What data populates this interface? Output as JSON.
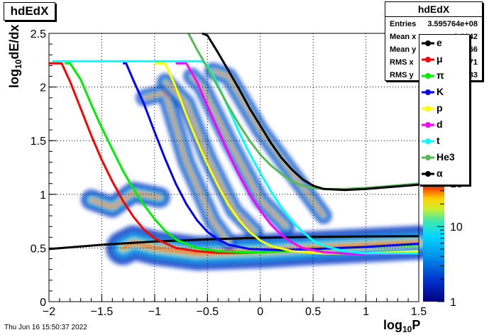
{
  "histogram_title": "hdEdX",
  "stats": {
    "title": "hdEdX",
    "rows": [
      {
        "key": "Entries",
        "value": "3.595764e+08"
      },
      {
        "key": "Mean x",
        "value": "0.2942"
      },
      {
        "key": "Mean y",
        "value": "0.6266"
      },
      {
        "key": "RMS x",
        "value": "0.4871"
      },
      {
        "key": "RMS y",
        "value": "0.2683"
      }
    ]
  },
  "timestamp": "Thu Jun 16 15:50:37 2022",
  "colorbar_ticks": [
    "1",
    "10",
    "10"
  ],
  "colorbar_exps": [
    "",
    "",
    "2"
  ],
  "colors": {
    "e": "#000000",
    "mu": "#ff0000",
    "pi": "#00ee00",
    "K": "#0000ff",
    "p": "#ffff00",
    "d": "#ff00ff",
    "t": "#00ffff",
    "He3": "#55bb55",
    "alpha": "#000000"
  },
  "chart_data": {
    "type": "heatmap",
    "title": "hdEdX",
    "xlabel": "log10P",
    "ylabel": "log10dE/dx",
    "xlim": [
      -2,
      1.5
    ],
    "ylim": [
      0,
      2.5
    ],
    "xticks": [
      "−2",
      "−1.5",
      "−1",
      "−0.5",
      "0",
      "0.5",
      "1",
      "1.5"
    ],
    "yticks": [
      "0",
      "0.5",
      "1",
      "1.5",
      "2",
      "2.5"
    ],
    "grid": true,
    "colorscale": "log",
    "zlim": [
      1,
      1000
    ],
    "legend_position": "top-right",
    "bands": [
      {
        "ridge": [
          [
            -1.3,
            0.5
          ],
          [
            -1.2,
            0.55
          ],
          [
            -1.0,
            0.5
          ],
          [
            -0.6,
            0.45
          ],
          [
            0,
            0.47
          ],
          [
            0.5,
            0.5
          ],
          [
            1.5,
            0.55
          ]
        ],
        "width": 0.05
      },
      {
        "ridge": [
          [
            -1.6,
            0.95
          ],
          [
            -1.4,
            0.88
          ],
          [
            -1.2,
            1.02
          ],
          [
            -0.95,
            0.97
          ]
        ],
        "width": 0.05
      },
      {
        "ridge": [
          [
            -1.1,
            1.9
          ],
          [
            -0.9,
            1.95
          ],
          [
            -0.7,
            1.3
          ],
          [
            -0.45,
            0.75
          ],
          [
            -0.3,
            0.55
          ]
        ],
        "width": 0.04
      },
      {
        "ridge": [
          [
            -0.9,
            2.05
          ],
          [
            -0.7,
            1.85
          ],
          [
            -0.5,
            1.35
          ],
          [
            -0.25,
            0.85
          ],
          [
            -0.05,
            0.65
          ]
        ],
        "width": 0.04
      },
      {
        "ridge": [
          [
            -0.65,
            2.1
          ],
          [
            -0.55,
            2.0
          ],
          [
            -0.3,
            1.5
          ],
          [
            0,
            0.95
          ],
          [
            0.25,
            0.7
          ]
        ],
        "width": 0.04
      },
      {
        "ridge": [
          [
            -0.45,
            2.15
          ],
          [
            -0.3,
            2.1
          ],
          [
            0,
            1.6
          ],
          [
            0.3,
            1.2
          ],
          [
            0.6,
            0.8
          ]
        ],
        "width": 0.04
      }
    ],
    "series": [
      {
        "name": "e",
        "x": [
          -2,
          -1.5,
          -1,
          -0.5,
          0,
          0.5,
          1,
          1.5
        ],
        "y": [
          0.49,
          0.53,
          0.56,
          0.58,
          0.595,
          0.603,
          0.608,
          0.61
        ]
      },
      {
        "name": "μ",
        "x": [
          -2.0,
          -1.88,
          -1.8,
          -1.7,
          -1.6,
          -1.5,
          -1.4,
          -1.3,
          -1.2,
          -1.1,
          -1.0,
          -0.8,
          -0.6,
          -0.4,
          -0.2,
          0,
          0.3,
          0.6
        ],
        "y": [
          2.22,
          2.22,
          2.05,
          1.8,
          1.55,
          1.32,
          1.12,
          0.94,
          0.79,
          0.67,
          0.59,
          0.5,
          0.47,
          0.455,
          0.455,
          0.46,
          0.475,
          0.49
        ]
      },
      {
        "name": "π",
        "x": [
          -1.85,
          -1.8,
          -1.7,
          -1.6,
          -1.5,
          -1.4,
          -1.3,
          -1.2,
          -1.1,
          -1.0,
          -0.9,
          -0.8,
          -0.6,
          -0.4,
          -0.2,
          0,
          0.3,
          0.6,
          1.0,
          1.5
        ],
        "y": [
          2.22,
          2.22,
          2.07,
          1.84,
          1.62,
          1.42,
          1.22,
          1.05,
          0.9,
          0.77,
          0.66,
          0.58,
          0.5,
          0.47,
          0.46,
          0.46,
          0.47,
          0.49,
          0.51,
          0.53
        ]
      },
      {
        "name": "K",
        "x": [
          -1.3,
          -1.27,
          -1.2,
          -1.1,
          -1.0,
          -0.9,
          -0.8,
          -0.7,
          -0.6,
          -0.5,
          -0.4,
          -0.3,
          -0.1,
          0.2,
          0.5,
          1.0,
          1.5
        ],
        "y": [
          2.22,
          2.22,
          2.06,
          1.84,
          1.58,
          1.33,
          1.1,
          0.91,
          0.76,
          0.65,
          0.58,
          0.53,
          0.49,
          0.48,
          0.49,
          0.51,
          0.54
        ]
      },
      {
        "name": "p",
        "x": [
          -1.0,
          -0.9,
          -0.8,
          -0.7,
          -0.6,
          -0.5,
          -0.4,
          -0.3,
          -0.2,
          -0.1,
          0,
          0.1,
          0.3,
          0.6,
          1.0,
          1.5
        ],
        "y": [
          2.22,
          2.22,
          2.0,
          1.74,
          1.5,
          1.28,
          1.08,
          0.9,
          0.76,
          0.65,
          0.57,
          0.52,
          0.47,
          0.45,
          0.45,
          0.47
        ]
      },
      {
        "name": "d",
        "x": [
          -0.8,
          -0.7,
          -0.6,
          -0.5,
          -0.4,
          -0.3,
          -0.2,
          -0.1,
          0,
          0.1,
          0.2,
          0.3,
          0.4,
          0.6,
          1.0,
          1.5
        ],
        "y": [
          2.22,
          2.22,
          2.05,
          1.82,
          1.6,
          1.38,
          1.18,
          1.0,
          0.85,
          0.72,
          0.62,
          0.55,
          0.5,
          0.46,
          0.44,
          0.45
        ]
      },
      {
        "name": "t",
        "x": [
          -1.97,
          -0.55,
          -0.5,
          -0.4,
          -0.3,
          -0.2,
          -0.1,
          0,
          0.1,
          0.2,
          0.3,
          0.4,
          0.5,
          0.6,
          0.8,
          1.0,
          1.5
        ],
        "y": [
          2.24,
          2.24,
          2.2,
          2.02,
          1.8,
          1.58,
          1.38,
          1.2,
          1.03,
          0.88,
          0.75,
          0.65,
          0.57,
          0.52,
          0.47,
          0.45,
          0.45
        ]
      },
      {
        "name": "He3",
        "x": [
          -0.68,
          -0.6,
          -0.5,
          -0.4,
          -0.3,
          -0.2,
          -0.1,
          0,
          0.1,
          0.2,
          0.3,
          0.4,
          0.5,
          0.6,
          0.8,
          1.0,
          1.5
        ],
        "y": [
          2.5,
          2.35,
          2.18,
          2.0,
          1.82,
          1.65,
          1.5,
          1.37,
          1.27,
          1.19,
          1.12,
          1.08,
          1.06,
          1.05,
          1.05,
          1.06,
          1.1
        ]
      },
      {
        "name": "α",
        "x": [
          -0.55,
          -0.5,
          -0.4,
          -0.3,
          -0.2,
          -0.1,
          0,
          0.1,
          0.2,
          0.3,
          0.4,
          0.5,
          0.6,
          0.8,
          1.0,
          1.5
        ],
        "y": [
          2.5,
          2.48,
          2.32,
          2.15,
          1.98,
          1.8,
          1.64,
          1.48,
          1.34,
          1.23,
          1.14,
          1.08,
          1.05,
          1.04,
          1.05,
          1.09
        ]
      }
    ]
  }
}
